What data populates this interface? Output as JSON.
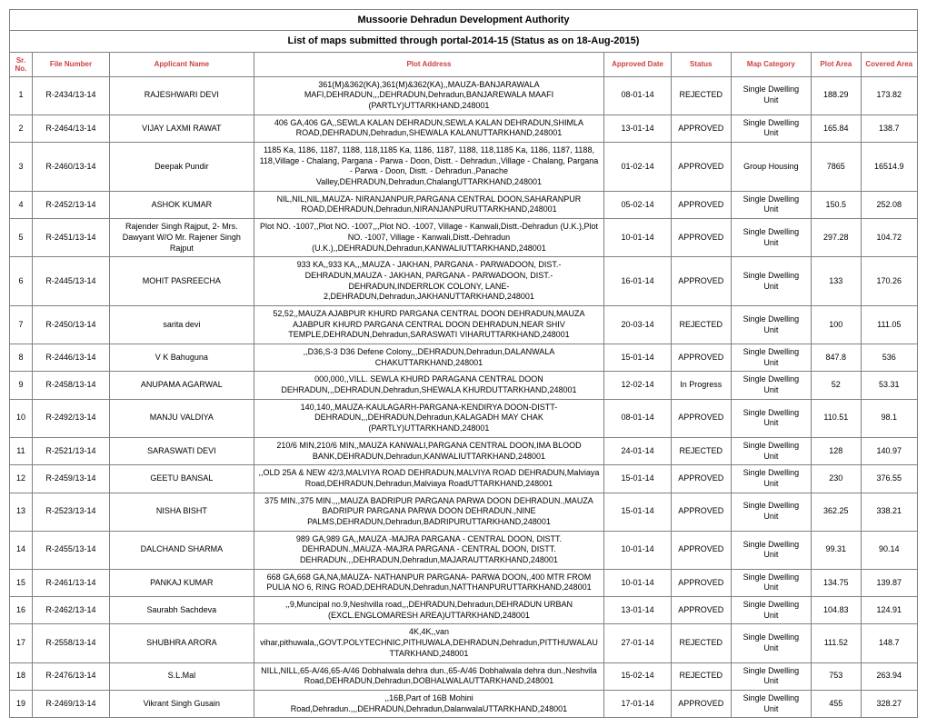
{
  "title1": "Mussoorie Dehradun Development Authority",
  "title2": "List of maps submitted through portal-2014-15 (Status as on 18-Aug-2015)",
  "headers": {
    "sr": "Sr. No.",
    "file": "File Number",
    "applicant": "Applicant Name",
    "address": "Plot Address",
    "date": "Approved Date",
    "status": "Status",
    "category": "Map Category",
    "plot": "Plot Area",
    "covered": "Covered Area"
  },
  "rows": [
    {
      "sr": "1",
      "file": "R-2434/13-14",
      "applicant": "RAJESHWARI DEVI",
      "address": "361(M)&362(KA),361(M)&362(KA),,MAUZA-BANJARAWALA MAFI,DEHRADUN,,,DEHRADUN,Dehradun,BANJAREWALA MAAFI (PARTLY)UTTARKHAND,248001",
      "date": "08-01-14",
      "status": "REJECTED",
      "category": "Single Dwelling Unit",
      "plot": "188.29",
      "covered": "173.82"
    },
    {
      "sr": "2",
      "file": "R-2464/13-14",
      "applicant": "VIJAY LAXMI RAWAT",
      "address": "406 GA,406 GA,,SEWLA KALAN DEHRADUN,SEWLA KALAN DEHRADUN,SHIMLA ROAD,DEHRADUN,Dehradun,SHEWALA KALANUTTARKHAND,248001",
      "date": "13-01-14",
      "status": "APPROVED",
      "category": "Single Dwelling Unit",
      "plot": "165.84",
      "covered": "138.7"
    },
    {
      "sr": "3",
      "file": "R-2460/13-14",
      "applicant": "Deepak Pundir",
      "address": "1185 Ka, 1186, 1187, 1188, 118,1185 Ka, 1186, 1187, 1188, 118,1185 Ka, 1186, 1187, 1188, 118,Village - Chalang, Pargana - Parwa - Doon, Distt. - Dehradun.,Village - Chalang, Pargana - Parwa - Doon, Distt. - Dehradun.,Panache Valley,DEHRADUN,Dehradun,ChalangUTTARKHAND,248001",
      "date": "01-02-14",
      "status": "APPROVED",
      "category": "Group Housing",
      "plot": "7865",
      "covered": "16514.9"
    },
    {
      "sr": "4",
      "file": "R-2452/13-14",
      "applicant": "ASHOK KUMAR",
      "address": "NIL,NIL,NIL,MAUZA- NIRANJANPUR,PARGANA CENTRAL DOON,SAHARANPUR ROAD,DEHRADUN,Dehradun,NIRANJANPURUTTARKHAND,248001",
      "date": "05-02-14",
      "status": "APPROVED",
      "category": "Single Dwelling Unit",
      "plot": "150.5",
      "covered": "252.08"
    },
    {
      "sr": "5",
      "file": "R-2451/13-14",
      "applicant": "Rajender Singh Rajput, 2- Mrs. Dawyant W/O Mr. Rajener Singh Rajput",
      "address": "Plot NO. -1007,,Plot NO. -1007,,,Plot NO. -1007, Village - Kanwali,Distt.-Dehradun (U.K.),Plot NO. -1007, Village - Kanwali,Distt.-Dehradun (U.K.),,DEHRADUN,Dehradun,KANWALIUTTARKHAND,248001",
      "date": "10-01-14",
      "status": "APPROVED",
      "category": "Single Dwelling Unit",
      "plot": "297.28",
      "covered": "104.72"
    },
    {
      "sr": "6",
      "file": "R-2445/13-14",
      "applicant": "MOHIT PASREECHA",
      "address": "933 KA,,933 KA,,,MAUZA - JAKHAN, PARGANA - PARWADOON, DIST.- DEHRADUN,MAUZA - JAKHAN, PARGANA - PARWADOON, DIST.- DEHRADUN,INDERRLOK COLONY, LANE-2,DEHRADUN,Dehradun,JAKHANUTTARKHAND,248001",
      "date": "16-01-14",
      "status": "APPROVED",
      "category": "Single Dwelling Unit",
      "plot": "133",
      "covered": "170.26"
    },
    {
      "sr": "7",
      "file": "R-2450/13-14",
      "applicant": "sarita devi",
      "address": "52,52,,MAUZA AJABPUR KHURD PARGANA CENTRAL DOON DEHRADUN,MAUZA AJABPUR KHURD PARGANA CENTRAL DOON DEHRADUN,NEAR SHIV TEMPLE,DEHRADUN,Dehradun,SARASWATI VIHARUTTARKHAND,248001",
      "date": "20-03-14",
      "status": "REJECTED",
      "category": "Single Dwelling Unit",
      "plot": "100",
      "covered": "111.05"
    },
    {
      "sr": "8",
      "file": "R-2446/13-14",
      "applicant": "V K Bahuguna",
      "address": ",,D36,S-3 D36 Defene Colony,,,DEHRADUN,Dehradun,DALANWALA CHAKUTTARKHAND,248001",
      "date": "15-01-14",
      "status": "APPROVED",
      "category": "Single Dwelling Unit",
      "plot": "847.8",
      "covered": "536"
    },
    {
      "sr": "9",
      "file": "R-2458/13-14",
      "applicant": "ANUPAMA AGARWAL",
      "address": "000,000,,VILL. SEWLA KHURD PARAGANA CENTRAL DOON DEHRADUN,,,DEHRADUN,Dehradun,SHEWALA KHURDUTTARKHAND,248001",
      "date": "12-02-14",
      "status": "In Progress",
      "category": "Single Dwelling Unit",
      "plot": "52",
      "covered": "53.31"
    },
    {
      "sr": "10",
      "file": "R-2492/13-14",
      "applicant": "MANJU VALDIYA",
      "address": "140,140,,MAUZA-KAULAGARH-PARGANA-KENDIRYA DOON-DISTT-DEHRADUN,,,DEHRADUN,Dehradun,KALAGADH MAY CHAK (PARTLY)UTTARKHAND,248001",
      "date": "08-01-14",
      "status": "APPROVED",
      "category": "Single Dwelling Unit",
      "plot": "110.51",
      "covered": "98.1"
    },
    {
      "sr": "11",
      "file": "R-2521/13-14",
      "applicant": "SARASWATI DEVI",
      "address": "210/6 MIN,210/6 MIN,,MAUZA KANWALI,PARGANA CENTRAL DOON,IMA BLOOD BANK,DEHRADUN,Dehradun,KANWALIUTTARKHAND,248001",
      "date": "24-01-14",
      "status": "REJECTED",
      "category": "Single Dwelling Unit",
      "plot": "128",
      "covered": "140.97"
    },
    {
      "sr": "12",
      "file": "R-2459/13-14",
      "applicant": "GEETU BANSAL",
      "address": ",,OLD 25A & NEW 42/3,MALVIYA ROAD DEHRADUN,MALVIYA ROAD DEHRADUN,Malviaya Road,DEHRADUN,Dehradun,Malviaya RoadUTTARKHAND,248001",
      "date": "15-01-14",
      "status": "APPROVED",
      "category": "Single Dwelling Unit",
      "plot": "230",
      "covered": "376.55"
    },
    {
      "sr": "13",
      "file": "R-2523/13-14",
      "applicant": "NISHA BISHT",
      "address": "375 MIN.,375 MIN.,,,MAUZA BADRIPUR PARGANA PARWA DOON DEHRADUN.,MAUZA BADRIPUR PARGANA PARWA DOON DEHRADUN.,NINE PALMS,DEHRADUN,Dehradun,BADRIPURUTTARKHAND,248001",
      "date": "15-01-14",
      "status": "APPROVED",
      "category": "Single Dwelling Unit",
      "plot": "362.25",
      "covered": "338.21"
    },
    {
      "sr": "14",
      "file": "R-2455/13-14",
      "applicant": "DALCHAND SHARMA",
      "address": "989 GA,989 GA,,MAUZA -MAJRA PARGANA - CENTRAL DOON, DISTT. DEHRADUN.,MAUZA -MAJRA PARGANA - CENTRAL DOON, DISTT. DEHRADUN.,,DEHRADUN,Dehradun,MAJARAUTTARKHAND,248001",
      "date": "10-01-14",
      "status": "APPROVED",
      "category": "Single Dwelling Unit",
      "plot": "99.31",
      "covered": "90.14"
    },
    {
      "sr": "15",
      "file": "R-2461/13-14",
      "applicant": "PANKAJ KUMAR",
      "address": "668 GA,668 GA,NA,MAUZA- NATHANPUR PARGANA- PARWA DOON,,400 MTR FROM PULIA NO 6, RING ROAD,DEHRADUN,Dehradun,NATTHANPURUTTARKHAND,248001",
      "date": "10-01-14",
      "status": "APPROVED",
      "category": "Single Dwelling Unit",
      "plot": "134.75",
      "covered": "139.87"
    },
    {
      "sr": "16",
      "file": "R-2462/13-14",
      "applicant": "Saurabh Sachdeva",
      "address": ",,9,Muncipal no.9,Neshvilla road,,,DEHRADUN,Dehradun,DEHRADUN URBAN (EXCL.ENGLOMARESH AREA)UTTARKHAND,248001",
      "date": "13-01-14",
      "status": "APPROVED",
      "category": "Single Dwelling Unit",
      "plot": "104.83",
      "covered": "124.91"
    },
    {
      "sr": "17",
      "file": "R-2558/13-14",
      "applicant": "SHUBHRA ARORA",
      "address": "4K,4K,,van vihar,pithuwala,,GOVT.POLYTECHNIC,PITHUWALA,DEHRADUN,Dehradun,PITTHUWALAUTTARKHAND,248001",
      "date": "27-01-14",
      "status": "REJECTED",
      "category": "Single Dwelling Unit",
      "plot": "111.52",
      "covered": "148.7"
    },
    {
      "sr": "18",
      "file": "R-2476/13-14",
      "applicant": "S.L.Mal",
      "address": "NILL,NILL,65-A/46,65-A/46 Dobhalwala dehra dun.,65-A/46 Dobhalwala dehra dun.,Neshvila Road,DEHRADUN,Dehradun,DOBHALWALAUTTARKHAND,248001",
      "date": "15-02-14",
      "status": "REJECTED",
      "category": "Single Dwelling Unit",
      "plot": "753",
      "covered": "263.94"
    },
    {
      "sr": "19",
      "file": "R-2469/13-14",
      "applicant": "Vikrant Singh Gusain",
      "address": ",,16B,Part of 16B Mohini Road,Dehradun.,,,DEHRADUN,Dehradun,DalanwalaUTTARKHAND,248001",
      "date": "17-01-14",
      "status": "APPROVED",
      "category": "Single Dwelling Unit",
      "plot": "455",
      "covered": "328.27"
    }
  ]
}
